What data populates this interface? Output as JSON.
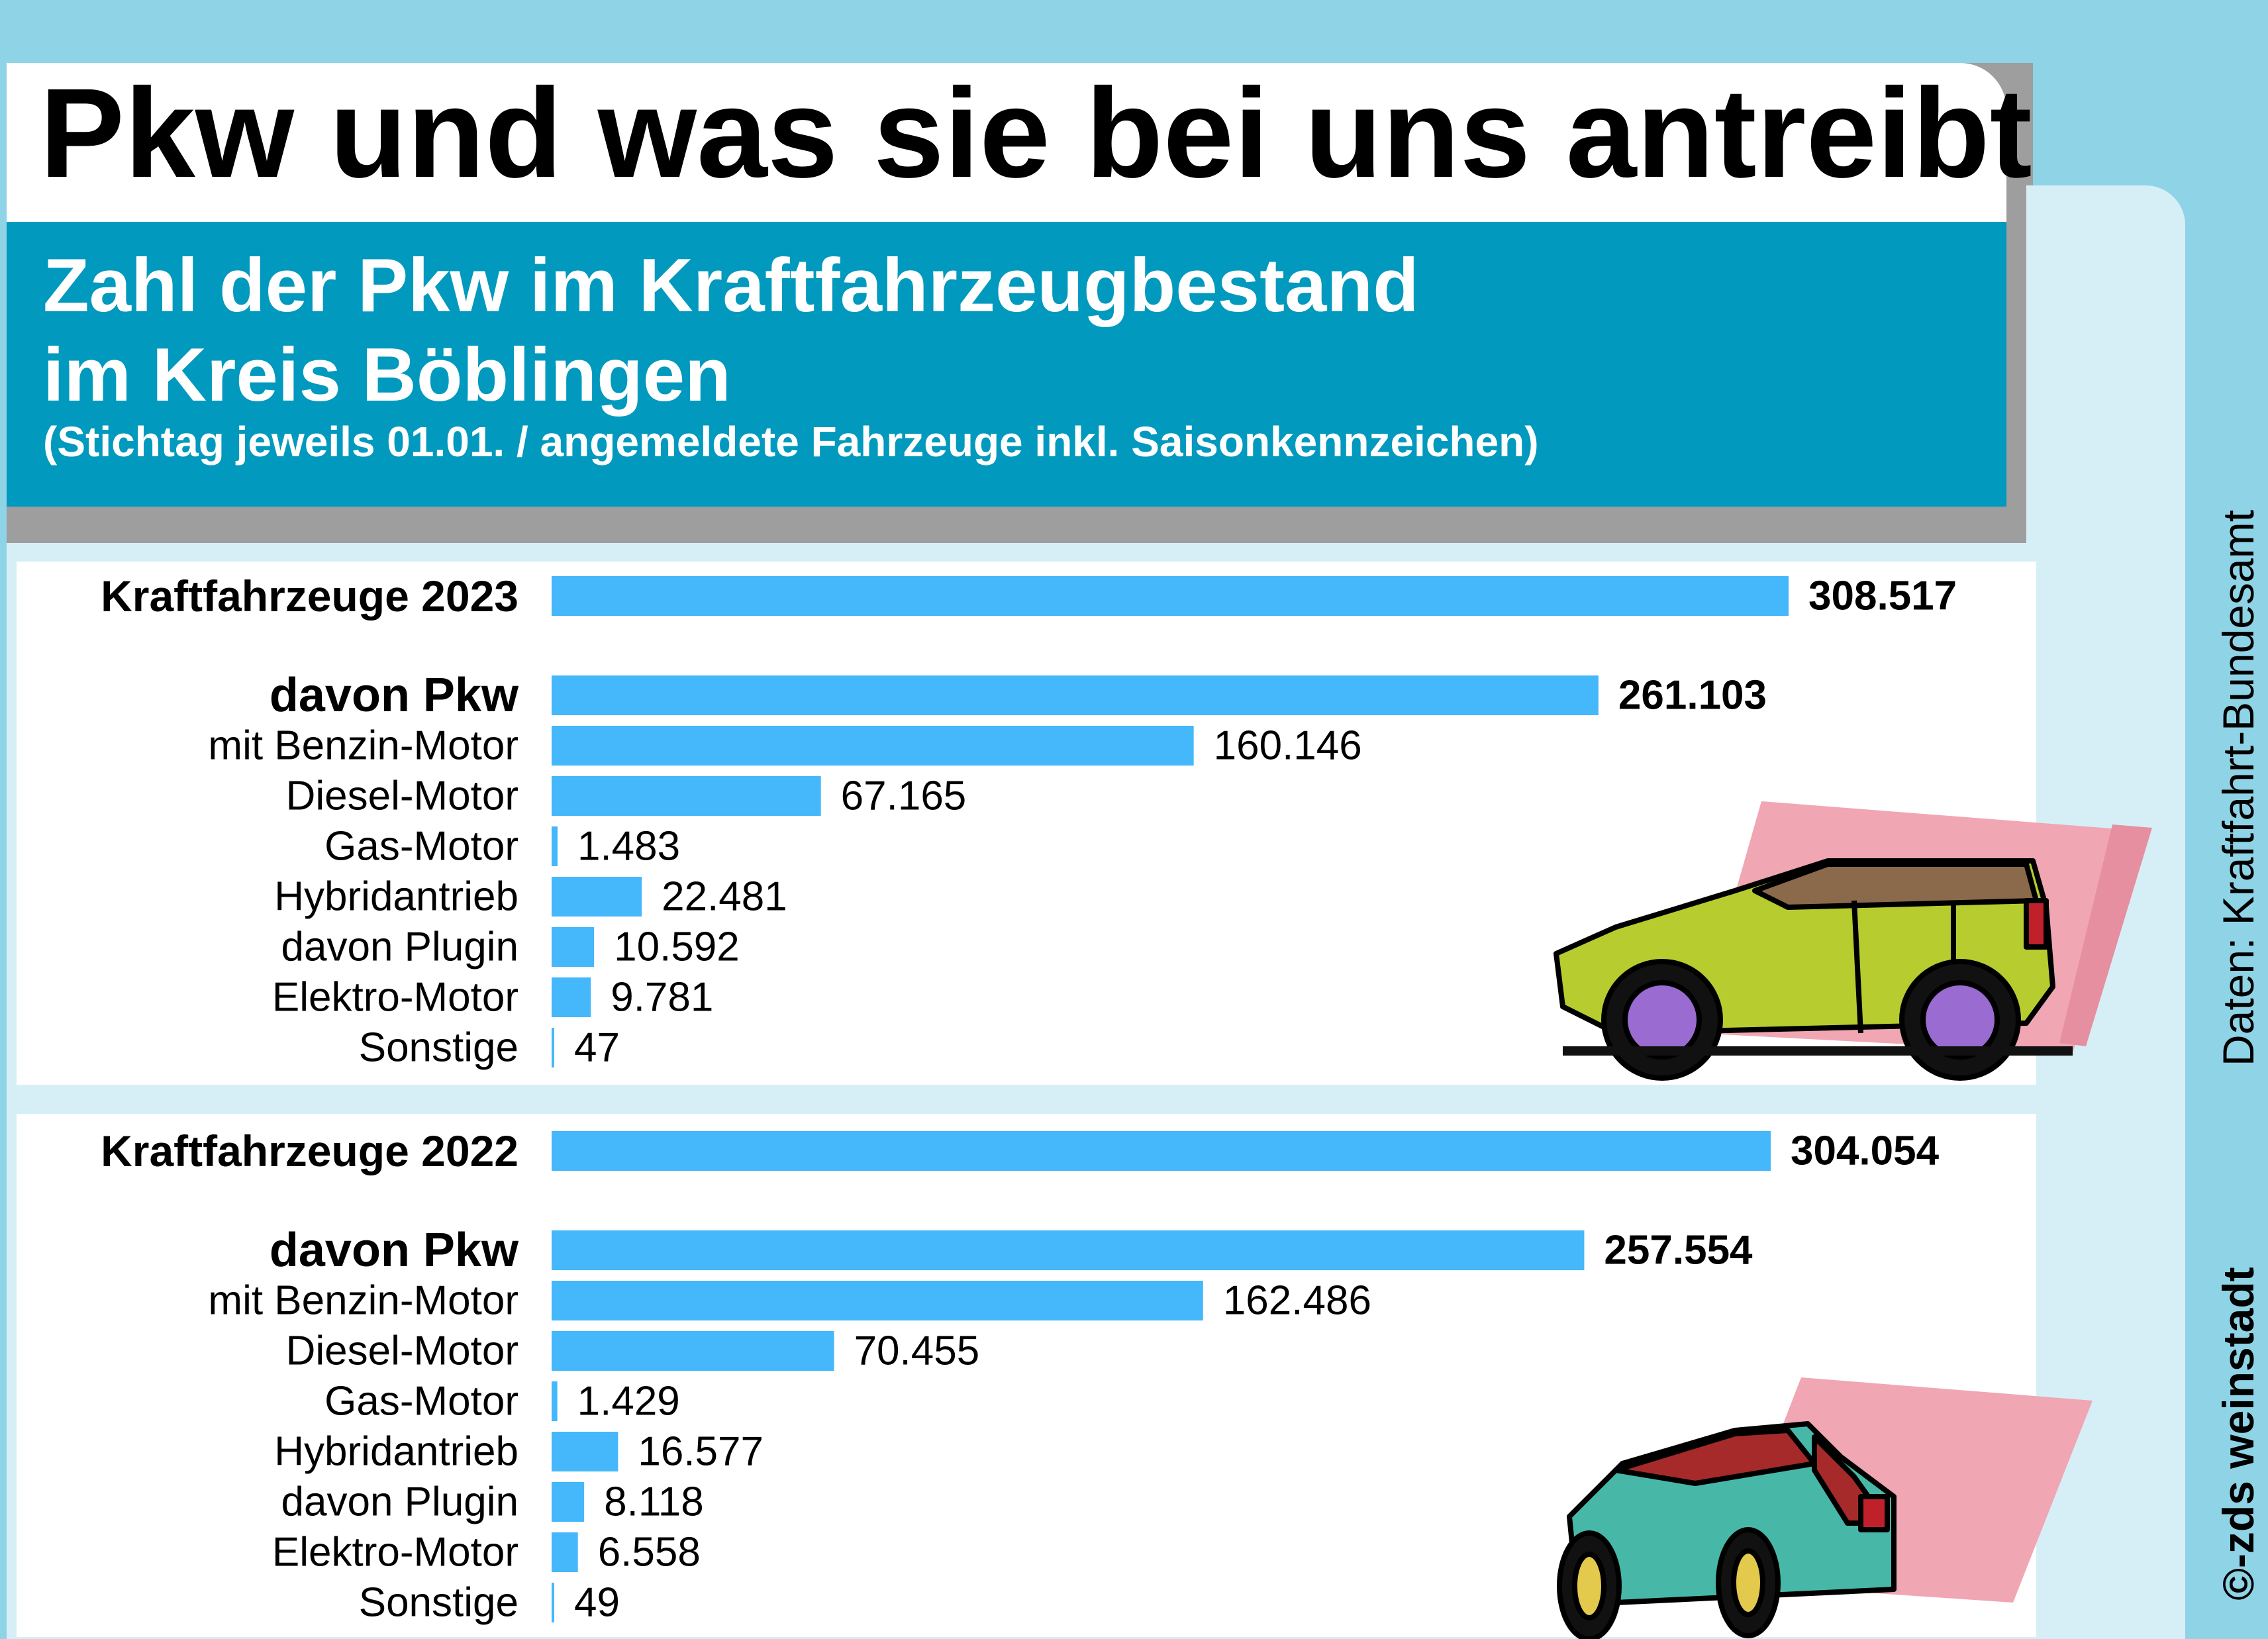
{
  "header": {
    "title": "Pkw und was sie bei uns antreibt",
    "subtitle_line1": "Zahl der Pkw im Kraftfahrzeugbestand",
    "subtitle_line2": "im Kreis Böblingen",
    "note": "(Stichtag jeweils 01.01.  /  angemeldete Fahrzeuge inkl. Saisonkennzeichen)"
  },
  "source": "Daten: Kraftfahrt-Bundesamt",
  "copyright": "©-zds  weinstadt",
  "colors": {
    "bar": "#45b7fb",
    "subtitle_bg": "#0199bd",
    "page_bg": "#8fd3e6",
    "panel_bg": "#d6eff7"
  },
  "chart_data": [
    {
      "type": "bar",
      "orientation": "horizontal",
      "categories": [
        "Kraftfahrzeuge 2023",
        "davon Pkw",
        "mit Benzin-Motor",
        "Diesel-Motor",
        "Gas-Motor",
        "Hybridantrieb",
        "davon Plugin",
        "Elektro-Motor",
        "Sonstige"
      ],
      "values": [
        308517,
        261103,
        160146,
        67165,
        1483,
        22481,
        10592,
        9781,
        47
      ],
      "value_labels": [
        "308.517",
        "261.103",
        "160.146",
        "67.165",
        "1.483",
        "22.481",
        "10.592",
        "9.781",
        "47"
      ],
      "bold": [
        true,
        true,
        false,
        false,
        false,
        false,
        false,
        false,
        false
      ]
    },
    {
      "type": "bar",
      "orientation": "horizontal",
      "categories": [
        "Kraftfahrzeuge 2022",
        "davon Pkw",
        "mit Benzin-Motor",
        "Diesel-Motor",
        "Gas-Motor",
        "Hybridantrieb",
        "davon Plugin",
        "Elektro-Motor",
        "Sonstige"
      ],
      "values": [
        304054,
        257554,
        162486,
        70455,
        1429,
        16577,
        8118,
        6558,
        49
      ],
      "value_labels": [
        "304.054",
        "257.554",
        "162.486",
        "70.455",
        "1.429",
        "16.577",
        "8.118",
        "6.558",
        "49"
      ],
      "bold": [
        true,
        true,
        false,
        false,
        false,
        false,
        false,
        false,
        false
      ]
    }
  ]
}
